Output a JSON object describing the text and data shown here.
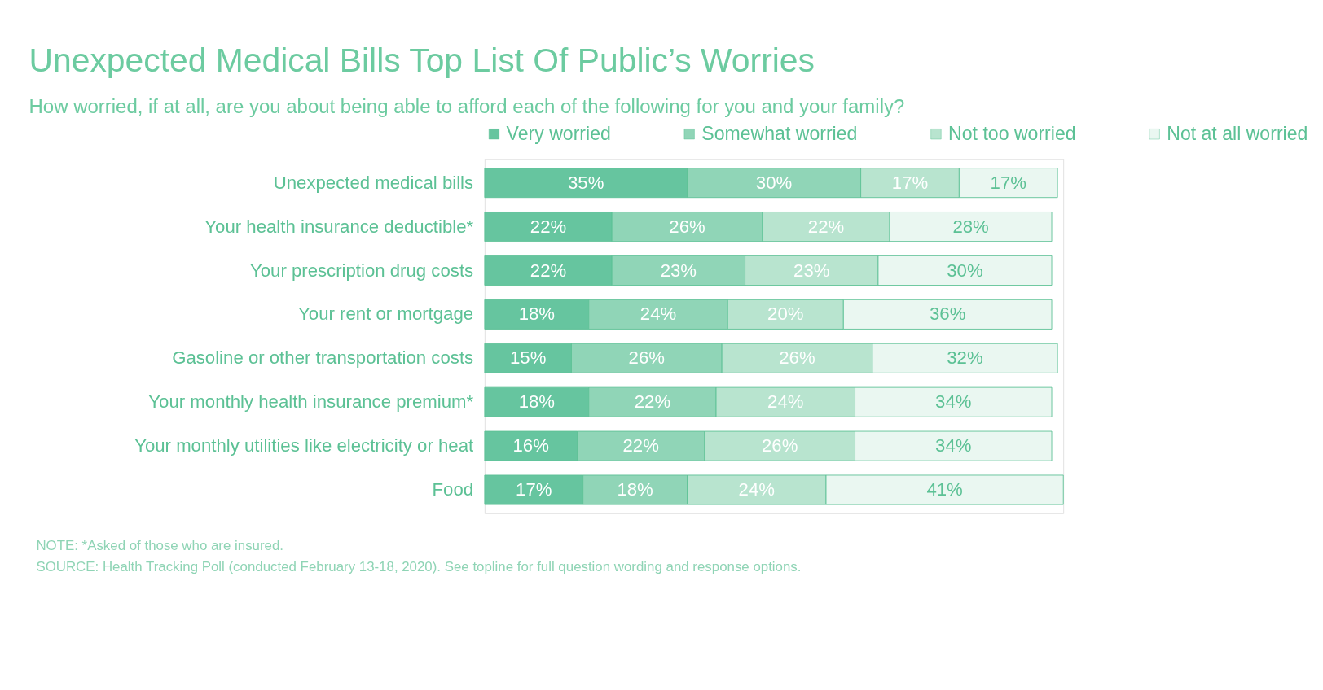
{
  "chart_data": {
    "type": "bar",
    "orientation": "horizontal",
    "stacked": true,
    "title": "Unexpected Medical Bills Top List Of Public’s Worries",
    "subtitle": "How worried, if at all, are you about being able to afford each of the following for you and your family?",
    "categories": [
      "Unexpected medical bills",
      "Your health insurance deductible*",
      "Your prescription drug costs",
      "Your rent or mortgage",
      "Gasoline or other transportation costs",
      "Your monthly health insurance premium*",
      "Your monthly utilities like electricity or heat",
      "Food"
    ],
    "series": [
      {
        "name": "Very worried",
        "color": "#66c59f",
        "values": [
          35,
          22,
          22,
          18,
          15,
          18,
          16,
          17
        ],
        "value_labels": [
          "35%",
          "22%",
          "22%",
          "18%",
          "15%",
          "18%",
          "16%",
          "17%"
        ]
      },
      {
        "name": "Somewhat worried",
        "color": "#90d5b7",
        "values": [
          30,
          26,
          23,
          24,
          26,
          22,
          22,
          18
        ],
        "value_labels": [
          "30%",
          "26%",
          "23%",
          "24%",
          "26%",
          "22%",
          "22%",
          "18%"
        ]
      },
      {
        "name": "Not too worried",
        "color": "#b8e4cf",
        "values": [
          17,
          22,
          23,
          20,
          26,
          24,
          26,
          24
        ],
        "value_labels": [
          "17%",
          "22%",
          "23%",
          "20%",
          "26%",
          "24%",
          "26%",
          "24%"
        ]
      },
      {
        "name": "Not at all worried",
        "color": "#eaf7f1",
        "values": [
          17,
          28,
          30,
          36,
          32,
          34,
          34,
          41
        ],
        "value_labels": [
          "17%",
          "28%",
          "30%",
          "36%",
          "32%",
          "34%",
          "34%",
          "41%"
        ]
      }
    ],
    "legend": "top",
    "tick_labels": "y",
    "grid": false,
    "annotations": [
      "NOTE: *Asked of those who are insured.",
      "SOURCE: Health Tracking Poll (conducted February 13-18, 2020). See topline for full question wording and response options."
    ]
  }
}
